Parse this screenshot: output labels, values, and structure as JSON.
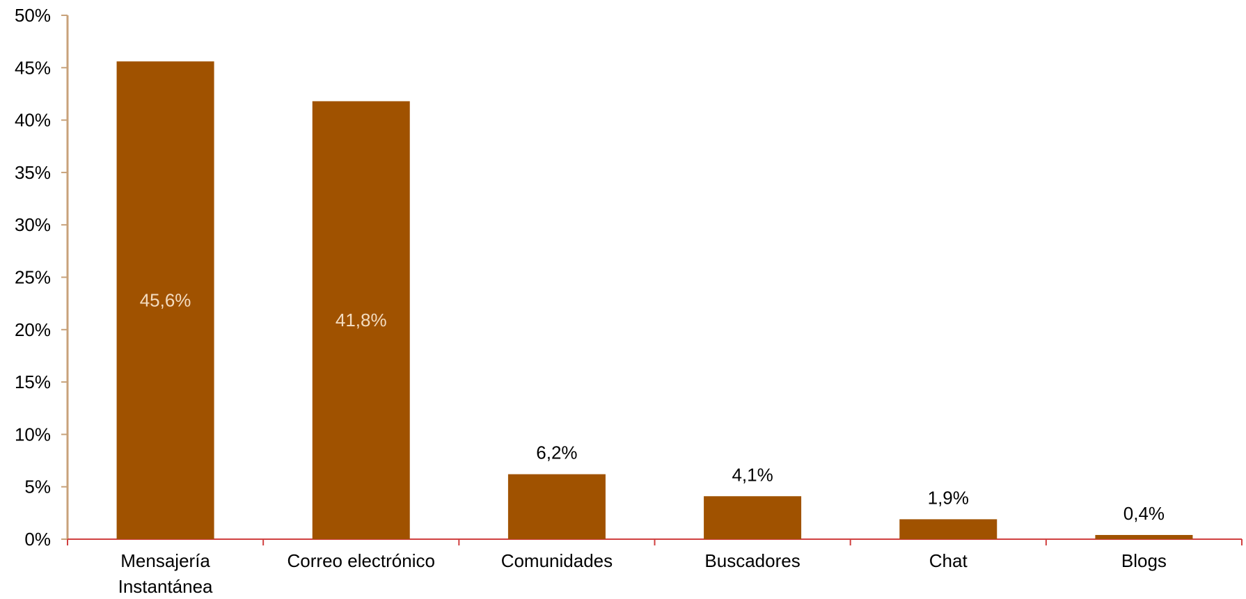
{
  "chart_data": {
    "type": "bar",
    "title": "",
    "xlabel": "",
    "ylabel": "",
    "categories": [
      [
        "Mensajería",
        "Instantánea"
      ],
      [
        "Correo electrónico"
      ],
      [
        "Comunidades"
      ],
      [
        "Buscadores"
      ],
      [
        "Chat"
      ],
      [
        "Blogs"
      ]
    ],
    "values": [
      45.6,
      41.8,
      6.2,
      4.1,
      1.9,
      0.4
    ],
    "value_labels": [
      "45,6%",
      "41,8%",
      "6,2%",
      "4,1%",
      "1,9%",
      "0,4%"
    ],
    "ylim": [
      0,
      50
    ],
    "yticks": [
      0,
      5,
      10,
      15,
      20,
      25,
      30,
      35,
      40,
      45,
      50
    ],
    "ytick_labels": [
      "0%",
      "5%",
      "10%",
      "15%",
      "20%",
      "25%",
      "30%",
      "35%",
      "40%",
      "45%",
      "50%"
    ],
    "grid": false,
    "legend": "none",
    "colors": {
      "bar": "#a05200",
      "y_axis": "#c8a27a",
      "x_axis": "#d04040",
      "label_inside": "#f3dcc0",
      "label_outside": "#000000"
    }
  }
}
